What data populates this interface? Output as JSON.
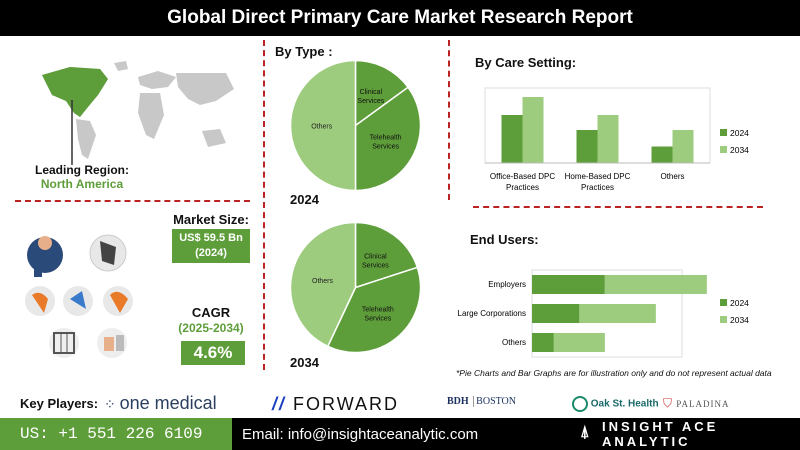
{
  "header": {
    "title": "Global Direct Primary Care Market Research Report"
  },
  "region": {
    "label": "Leading Region:",
    "value": "North America"
  },
  "market_size": {
    "label": "Market Size:",
    "value": "US$ 59.5 Bn",
    "year": "(2024)"
  },
  "cagr": {
    "label": "CAGR",
    "period": "(2025-2034)",
    "value": "4.6%"
  },
  "by_type": {
    "title": "By Type :"
  },
  "by_care_setting": {
    "title": "By Care Setting:"
  },
  "end_users": {
    "title": "End Users:"
  },
  "note": "*Pie Charts and Bar Graphs are for illustration only and do not represent actual data",
  "key_players": {
    "label": "Key Players:",
    "logos": [
      "one medical",
      "FORWARD",
      "BOSTON",
      "Oak St. Health",
      "PALADINA"
    ]
  },
  "footer": {
    "phone": "US: +1 551 226 6109",
    "email": "Email: info@insightaceanalytic.com",
    "brand": "INSIGHT ACE ANALYTIC"
  },
  "colors": {
    "dark_green": "#5e9e3a",
    "light_green": "#9dcc7e",
    "accent_red": "#b22222"
  },
  "chart_data": [
    {
      "type": "pie",
      "title": "2024",
      "labels": [
        "Clinical Services",
        "Telehealth Services",
        "Others"
      ],
      "values": [
        15,
        35,
        50
      ]
    },
    {
      "type": "pie",
      "title": "2034",
      "labels": [
        "Clinical Services",
        "Telehealth Services",
        "Others"
      ],
      "values": [
        20,
        37,
        43
      ]
    },
    {
      "type": "bar",
      "title": "By Care Setting:",
      "categories": [
        "Office-Based DPC Practices",
        "Home-Based DPC Practices",
        "Others"
      ],
      "series": [
        {
          "name": "2024",
          "values": [
            3.2,
            2.2,
            1.1
          ]
        },
        {
          "name": "2034",
          "values": [
            4.4,
            3.2,
            2.2
          ]
        }
      ],
      "ylim": [
        0,
        5
      ],
      "legend": "right"
    },
    {
      "type": "bar",
      "orientation": "horizontal",
      "title": "End Users:",
      "categories": [
        "Employers",
        "Large Corporations",
        "Others"
      ],
      "series": [
        {
          "name": "2024",
          "values": [
            2.0,
            1.3,
            0.6
          ]
        },
        {
          "name": "2034",
          "values": [
            4.8,
            3.4,
            2.0
          ]
        }
      ],
      "xlim": [
        0,
        7
      ],
      "legend": "right"
    }
  ]
}
